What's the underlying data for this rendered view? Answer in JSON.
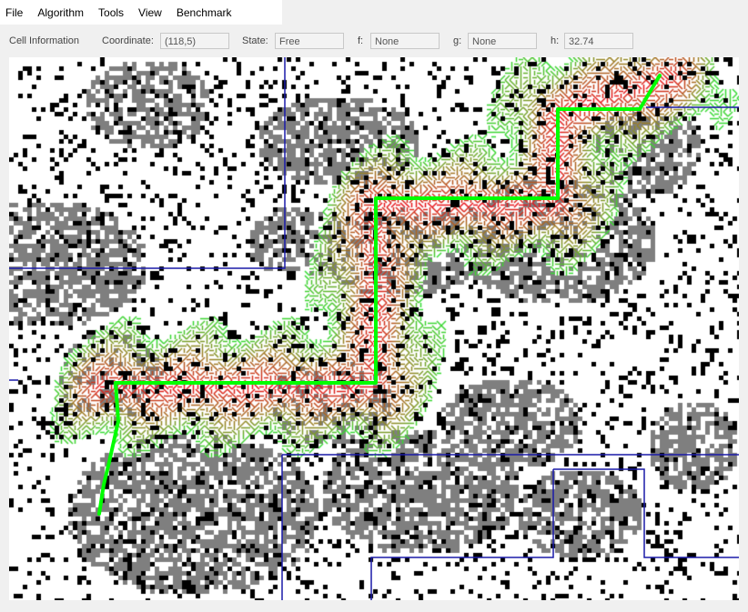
{
  "menu": {
    "file": "File",
    "algorithm": "Algorithm",
    "tools": "Tools",
    "view": "View",
    "benchmark": "Benchmark"
  },
  "cell_info": {
    "title": "Cell Information",
    "coordinate_label": "Coordinate:",
    "coordinate_value": "(118,5)",
    "state_label": "State:",
    "state_value": "Free",
    "f_label": "f:",
    "f_value": "None",
    "g_label": "g:",
    "g_value": "None",
    "h_label": "h:",
    "h_value": "32.74"
  },
  "colors": {
    "blocked": "#000000",
    "swamp": "#7f7f7f",
    "free": "#ffffff",
    "path": "#00ff00",
    "region_border": "#1a1aa8",
    "expanded_low": "#e8141a",
    "expanded_mid": "#9a7f22",
    "expanded_edge": "#33dd33"
  }
}
